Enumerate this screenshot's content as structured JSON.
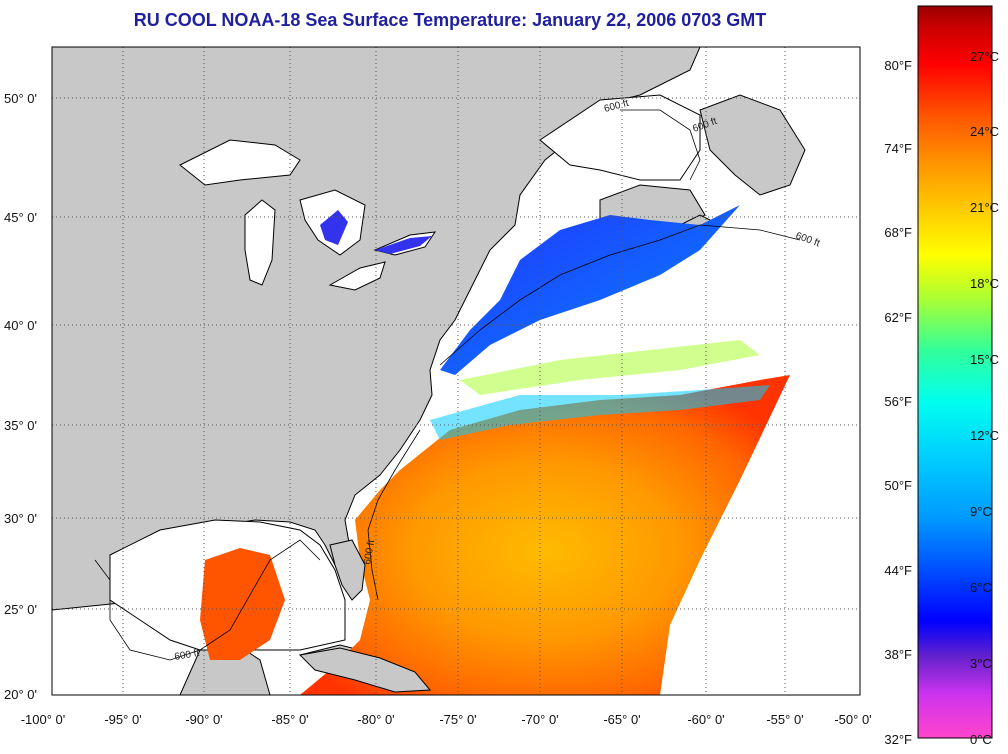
{
  "title": "RU COOL  NOAA-18  Sea Surface Temperature:  January 22, 2006 0703 GMT",
  "colors": {
    "land": "#c8c8c8",
    "cloud": "#ffffff",
    "coast": "#000000",
    "grid": "#555555"
  },
  "map": {
    "x_ticks": [
      "-100° 0'",
      "-95° 0'",
      "-90° 0'",
      "-85° 0'",
      "-80° 0'",
      "-75° 0'",
      "-70° 0'",
      "-65° 0'",
      "-60° 0'",
      "-55° 0'",
      "-50° 0'"
    ],
    "y_ticks": [
      "50° 0'",
      "45° 0'",
      "40° 0'",
      "35° 0'",
      "30° 0'",
      "25° 0'",
      "20° 0'"
    ],
    "contour_label": "600 ft"
  },
  "colorbar": {
    "fahrenheit": [
      "80°F",
      "74°F",
      "68°F",
      "62°F",
      "56°F",
      "50°F",
      "44°F",
      "38°F",
      "32°F"
    ],
    "celsius": [
      "27°C",
      "24°C",
      "21°C",
      "18°C",
      "15°C",
      "12°C",
      "9°C",
      "6°C",
      "3°C",
      "0°C"
    ],
    "gradient": [
      "#ff44cc",
      "#cc33ee",
      "#6622cc",
      "#0000ff",
      "#0044ff",
      "#0099ff",
      "#00ccff",
      "#00ffee",
      "#33ff99",
      "#aaff33",
      "#ffff00",
      "#ffcc00",
      "#ff9900",
      "#ff5500",
      "#ff0000",
      "#cc0000",
      "#990000"
    ]
  }
}
